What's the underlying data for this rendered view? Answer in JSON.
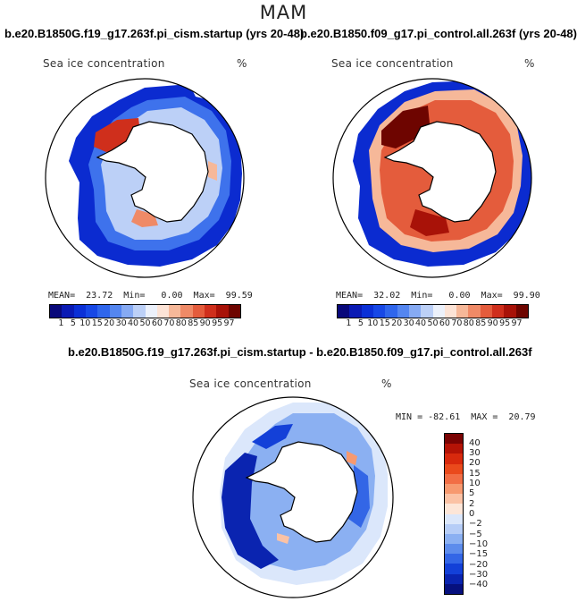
{
  "season": "MAM",
  "panels": [
    {
      "title": "b.e20.B1850G.f19_g17.263f.pi_cism.startup (yrs 20-48)",
      "variable": "Sea ice concentration",
      "unit": "%",
      "stats": "MEAN=  23.72  Min=   0.00  Max=  99.59"
    },
    {
      "title": "b.e20.B1850.f09_g17.pi_control.all.263f (yrs 20-48)",
      "variable": "Sea ice concentration",
      "unit": "%",
      "stats": "MEAN=  32.02  Min=   0.00  Max=  99.90"
    }
  ],
  "diff_panel": {
    "title": "b.e20.B1850G.f19_g17.263f.pi_cism.startup - b.e20.B1850.f09_g17.pi_control.all.263f",
    "variable": "Sea ice concentration",
    "unit": "%",
    "stats": "MIN = -82.61  MAX =  20.79"
  },
  "colorbar_abs": {
    "ticks": [
      "1",
      "5",
      "10",
      "15",
      "20",
      "30",
      "40",
      "50",
      "60",
      "70",
      "80",
      "85",
      "90",
      "95",
      "97"
    ],
    "colors": [
      "#08087a",
      "#0a1ab4",
      "#0b30d6",
      "#1748e6",
      "#2f66ec",
      "#5486f0",
      "#86aaf3",
      "#bcd0f7",
      "#ecf1fb",
      "#fce3d6",
      "#f6b899",
      "#ef8a67",
      "#e45c3c",
      "#cf2f1c",
      "#a81208",
      "#6e0500"
    ]
  },
  "colorbar_diff": {
    "ticks": [
      "40",
      "30",
      "20",
      "15",
      "10",
      "5",
      "2",
      "0",
      "−2",
      "−5",
      "−10",
      "−15",
      "−20",
      "−30",
      "−40"
    ],
    "colors": [
      "#7a0303",
      "#b41306",
      "#d8290d",
      "#ea4a1c",
      "#f26e45",
      "#f7996f",
      "#fbc2a5",
      "#fde6d8",
      "#dbe7fb",
      "#b6cdf7",
      "#8bb0f2",
      "#5d8cec",
      "#3366e6",
      "#1340d8",
      "#0a24b0",
      "#06107e"
    ]
  }
}
